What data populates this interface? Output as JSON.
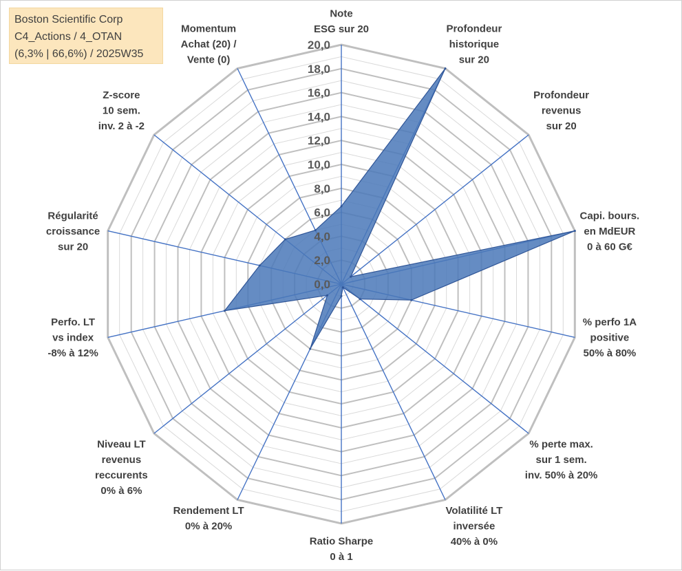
{
  "info_box": {
    "line1": "Boston Scientific Corp",
    "line2": "C4_Actions / 4_OTAN",
    "line3": "(6,3% | 66,6%) / 2025W35"
  },
  "colors": {
    "fill": "#4a78b8",
    "stroke": "#2f5597",
    "spoke": "#4472c4",
    "grid_major": "#bfbfbf",
    "grid_minor": "#d9d9d9"
  },
  "chart_data": {
    "type": "radar",
    "title": "",
    "range": [
      0,
      20
    ],
    "ticks": [
      "0,0",
      "2,0",
      "4,0",
      "6,0",
      "8,0",
      "10,0",
      "12,0",
      "14,0",
      "16,0",
      "18,0",
      "20,0"
    ],
    "grid": true,
    "axes": [
      {
        "label": [
          "Note",
          "ESG sur 20"
        ],
        "value": 6.5
      },
      {
        "label": [
          "Profondeur",
          "historique",
          "sur 20"
        ],
        "value": 20.0
      },
      {
        "label": [
          "Profondeur",
          "revenus",
          "sur 20"
        ],
        "value": 1.0
      },
      {
        "label": [
          "Capi. bours.",
          "en MdEUR",
          "0 à 60 G€"
        ],
        "value": 20.0
      },
      {
        "label": [
          "% perfo 1A",
          "positive",
          "50% à 80%"
        ],
        "value": 6.0
      },
      {
        "label": [
          "% perte max.",
          "sur 1 sem.",
          "inv. 50% à 20%"
        ],
        "value": 2.0
      },
      {
        "label": [
          "Volatilité LT",
          "inversée",
          "40% à 0%"
        ],
        "value": 0.3
      },
      {
        "label": [
          "Ratio Sharpe",
          "0 à 1"
        ],
        "value": 1.0
      },
      {
        "label": [
          "Rendement LT",
          "0% à 20%"
        ],
        "value": 6.0
      },
      {
        "label": [
          "Niveau LT",
          "revenus",
          "reccurents",
          "0% à 6%"
        ],
        "value": 1.5
      },
      {
        "label": [
          "Perfo. LT",
          "vs index",
          "-8% à 12%"
        ],
        "value": 10.0
      },
      {
        "label": [
          "Régularité",
          "croissance",
          "sur 20"
        ],
        "value": 7.0
      },
      {
        "label": [
          "Z-score",
          "10 sem.",
          "inv. 2 à -2"
        ],
        "value": 6.0
      },
      {
        "label": [
          "Momentum",
          "Achat (20) /",
          "Vente (0)"
        ],
        "value": 5.0
      }
    ]
  }
}
